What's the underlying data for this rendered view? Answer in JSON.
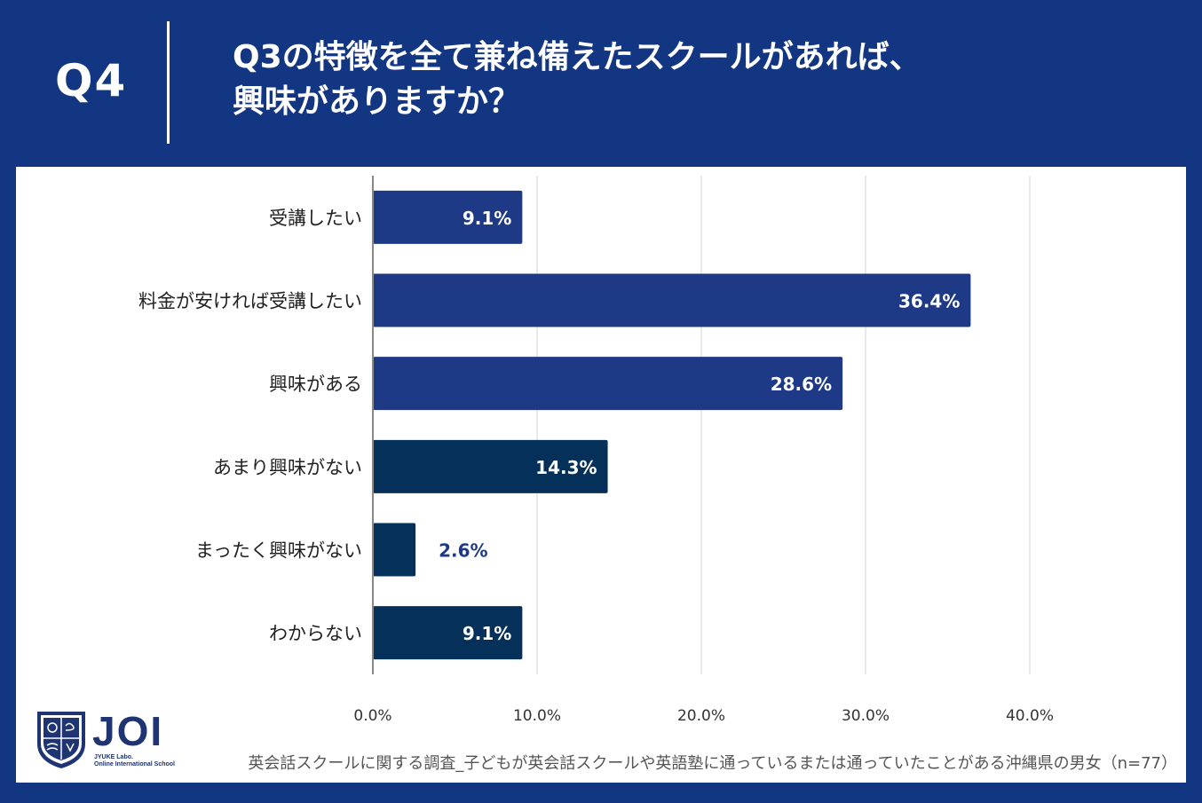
{
  "header": {
    "qnum": "Q4",
    "title_line1": "Q3の特徴を全て兼ね備えたスクールがあれば、",
    "title_line2": "興味がありますか？"
  },
  "logo": {
    "name": "JOI",
    "sub1": "JYUKE Labo.",
    "sub2": "Online International School"
  },
  "footnote": "英会話スクールに関する調査_子どもが英会話スクールや英語塾に通っているまたは通っていたことがある沖縄県の男女（n=77）",
  "colors": {
    "header_bg": "#123682",
    "bar_blue": "#1e3a86",
    "bar_navy": "#05305a",
    "outside_label": "#1e3a86"
  },
  "chart_data": {
    "type": "bar",
    "orientation": "horizontal",
    "categories": [
      "受講したい",
      "料金が安ければ受講したい",
      "興味がある",
      "あまり興味がない",
      "まったく興味がない",
      "わからない"
    ],
    "values": [
      9.1,
      36.4,
      28.6,
      14.3,
      2.6,
      9.1
    ],
    "data_labels": [
      "9.1%",
      "36.4%",
      "28.6%",
      "14.3%",
      "2.6%",
      "9.1%"
    ],
    "bar_colors": [
      "#1e3a86",
      "#1e3a86",
      "#1e3a86",
      "#05305a",
      "#05305a",
      "#05305a"
    ],
    "xlim": [
      0,
      40
    ],
    "xticks": [
      0,
      10,
      20,
      30,
      40
    ],
    "xtick_labels": [
      "0.0%",
      "10.0%",
      "20.0%",
      "30.0%",
      "40.0%"
    ],
    "grid": true,
    "title": "",
    "xlabel": "",
    "ylabel": ""
  }
}
